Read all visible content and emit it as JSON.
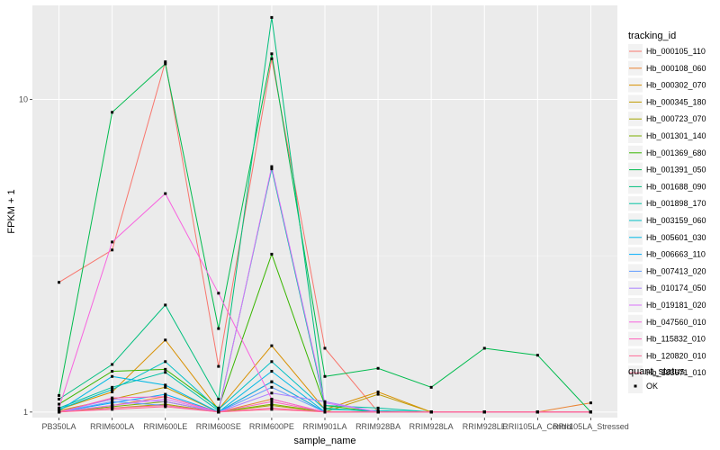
{
  "chart_data": {
    "type": "line",
    "xlabel": "sample_name",
    "ylabel": "FPKM + 1",
    "y_scale": "log10",
    "ylim": [
      0.96,
      20
    ],
    "y_ticks": [
      {
        "value": 1,
        "label": "1"
      },
      {
        "value": 10,
        "label": "10"
      }
    ],
    "grid": true,
    "legend_position": "right",
    "categories": [
      "PB350LA",
      "RRIM600LA",
      "RRIM600LE",
      "RRIM600SE",
      "RRIM600PE",
      "RRIM901LA",
      "RRIM928BA",
      "RRIM928LA",
      "RRIM928LE",
      "RRII105LA_Control",
      "RRII105LA_Stressed"
    ],
    "series_legend_title": "tracking_id",
    "shape_legend": {
      "title": "quant_status",
      "items": [
        {
          "label": "OK",
          "color": "#000000"
        }
      ]
    },
    "series": [
      {
        "name": "Hb_000105_110",
        "color": "#F8766D",
        "values": [
          2.6,
          3.3,
          13.2,
          1.4,
          13.5,
          1.6,
          1.0,
          1.0,
          1.0,
          1.0,
          1.0
        ]
      },
      {
        "name": "Hb_000108_060",
        "color": "#EA8331",
        "values": [
          1.0,
          1.05,
          1.12,
          1.0,
          1.1,
          1.0,
          1.0,
          1.0,
          1.0,
          1.0,
          1.07
        ]
      },
      {
        "name": "Hb_000302_070",
        "color": "#D89000",
        "values": [
          1.02,
          1.16,
          1.7,
          1.02,
          1.63,
          1.02,
          1.16,
          1.0,
          1.0,
          1.0,
          1.0
        ]
      },
      {
        "name": "Hb_000345_180",
        "color": "#C09B00",
        "values": [
          1.01,
          1.1,
          1.2,
          1.0,
          1.25,
          1.0,
          1.14,
          1.0,
          1.0,
          1.0,
          1.0
        ]
      },
      {
        "name": "Hb_000723_070",
        "color": "#A3A500",
        "values": [
          1.0,
          1.03,
          1.06,
          1.0,
          1.05,
          1.0,
          1.0,
          1.0,
          1.0,
          1.0,
          1.0
        ]
      },
      {
        "name": "Hb_001301_140",
        "color": "#7CAE00",
        "values": [
          1.0,
          1.04,
          1.08,
          1.0,
          1.06,
          1.0,
          1.0,
          1.0,
          1.0,
          1.0,
          1.0
        ]
      },
      {
        "name": "Hb_001369_680",
        "color": "#39B600",
        "values": [
          1.06,
          1.35,
          1.37,
          1.03,
          3.2,
          1.05,
          1.0,
          1.0,
          1.0,
          1.0,
          1.0
        ]
      },
      {
        "name": "Hb_001391_050",
        "color": "#00BB4E",
        "values": [
          1.13,
          9.1,
          13.0,
          1.85,
          14.0,
          1.3,
          1.38,
          1.2,
          1.6,
          1.52,
          1.0
        ]
      },
      {
        "name": "Hb_001688_090",
        "color": "#00BF7D",
        "values": [
          1.1,
          1.42,
          2.2,
          1.1,
          18.3,
          1.03,
          1.0,
          1.0,
          1.0,
          1.0,
          1.0
        ]
      },
      {
        "name": "Hb_001898_170",
        "color": "#00C1A3",
        "values": [
          1.03,
          1.2,
          1.34,
          1.01,
          6.0,
          1.05,
          1.03,
          1.0,
          1.0,
          1.0,
          1.0
        ]
      },
      {
        "name": "Hb_003159_060",
        "color": "#00BFC4",
        "values": [
          1.02,
          1.18,
          1.45,
          1.02,
          1.45,
          1.02,
          1.01,
          1.0,
          1.0,
          1.0,
          1.0
        ]
      },
      {
        "name": "Hb_005601_030",
        "color": "#00B8E5",
        "values": [
          1.01,
          1.3,
          1.22,
          1.0,
          1.35,
          1.0,
          1.0,
          1.0,
          1.0,
          1.0,
          1.0
        ]
      },
      {
        "name": "Hb_006663_110",
        "color": "#00ADFA",
        "values": [
          1.0,
          1.07,
          1.14,
          1.0,
          1.25,
          1.0,
          1.0,
          1.0,
          1.0,
          1.0,
          1.0
        ]
      },
      {
        "name": "Hb_007413_020",
        "color": "#619CFF",
        "values": [
          1.0,
          1.08,
          1.05,
          1.0,
          1.2,
          1.0,
          1.0,
          1.0,
          1.0,
          1.0,
          1.0
        ]
      },
      {
        "name": "Hb_010174_050",
        "color": "#AB82FF",
        "values": [
          1.0,
          1.1,
          1.08,
          1.0,
          1.15,
          1.08,
          1.0,
          1.0,
          1.0,
          1.0,
          1.0
        ]
      },
      {
        "name": "Hb_019181_020",
        "color": "#DB72FB",
        "values": [
          1.0,
          1.05,
          1.1,
          1.0,
          6.1,
          1.07,
          1.0,
          1.0,
          1.0,
          1.0,
          1.0
        ]
      },
      {
        "name": "Hb_047560_010",
        "color": "#F863DF",
        "values": [
          1.03,
          3.5,
          5.0,
          2.4,
          1.1,
          1.0,
          1.0,
          1.0,
          1.0,
          1.0,
          1.0
        ]
      },
      {
        "name": "Hb_115832_010",
        "color": "#FF62BC",
        "values": [
          1.0,
          1.11,
          1.12,
          1.0,
          1.08,
          1.0,
          1.0,
          1.0,
          1.0,
          1.0,
          1.0
        ]
      },
      {
        "name": "Hb_120820_010",
        "color": "#FF6A98",
        "values": [
          1.0,
          1.02,
          1.04,
          1.0,
          1.03,
          1.0,
          1.0,
          1.0,
          1.0,
          1.0,
          1.0
        ]
      },
      {
        "name": "Hb_183671_010",
        "color": "#FF6C91",
        "values": [
          1.0,
          1.03,
          1.05,
          1.0,
          1.02,
          1.0,
          1.0,
          1.0,
          1.0,
          1.0,
          1.0
        ]
      }
    ]
  }
}
